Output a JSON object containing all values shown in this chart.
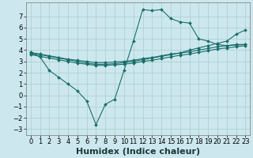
{
  "xlabel": "Humidex (Indice chaleur)",
  "background_color": "#cce8ee",
  "grid_color": "#aacccc",
  "line_color": "#1a6e6a",
  "xlim": [
    -0.5,
    23.5
  ],
  "ylim": [
    -3.5,
    8.2
  ],
  "xticks": [
    0,
    1,
    2,
    3,
    4,
    5,
    6,
    7,
    8,
    9,
    10,
    11,
    12,
    13,
    14,
    15,
    16,
    17,
    18,
    19,
    20,
    21,
    22,
    23
  ],
  "yticks": [
    -3,
    -2,
    -1,
    0,
    1,
    2,
    3,
    4,
    5,
    6,
    7
  ],
  "line1_x": [
    0,
    1,
    2,
    3,
    4,
    5,
    6,
    7,
    8,
    9,
    10,
    11,
    12,
    13,
    14,
    15,
    16,
    17,
    18,
    19,
    20,
    21,
    22,
    23
  ],
  "line1_y": [
    3.8,
    3.4,
    2.2,
    1.6,
    1.0,
    0.4,
    -0.5,
    -2.6,
    -0.8,
    -0.35,
    2.2,
    4.8,
    7.6,
    7.5,
    7.6,
    6.8,
    6.5,
    6.4,
    5.0,
    4.8,
    4.5,
    4.4,
    4.5,
    4.5
  ],
  "line2_x": [
    0,
    1,
    2,
    3,
    4,
    5,
    6,
    7,
    8,
    9,
    10,
    11,
    12,
    13,
    14,
    15,
    16,
    17,
    18,
    19,
    20,
    21,
    22,
    23
  ],
  "line2_y": [
    3.8,
    3.65,
    3.5,
    3.35,
    3.2,
    3.1,
    3.0,
    2.9,
    2.9,
    2.95,
    3.0,
    3.1,
    3.25,
    3.35,
    3.5,
    3.65,
    3.75,
    3.85,
    4.0,
    4.15,
    4.3,
    4.4,
    4.45,
    4.5
  ],
  "line3_x": [
    0,
    1,
    2,
    3,
    4,
    5,
    6,
    7,
    8,
    9,
    10,
    11,
    12,
    13,
    14,
    15,
    16,
    17,
    18,
    19,
    20,
    21,
    22,
    23
  ],
  "line3_y": [
    3.6,
    3.45,
    3.3,
    3.15,
    3.0,
    2.85,
    2.75,
    2.65,
    2.65,
    2.7,
    2.75,
    2.85,
    3.0,
    3.1,
    3.25,
    3.4,
    3.55,
    3.65,
    3.8,
    3.95,
    4.1,
    4.2,
    4.3,
    4.4
  ],
  "line4_x": [
    0,
    1,
    2,
    3,
    4,
    5,
    6,
    7,
    8,
    9,
    10,
    11,
    12,
    13,
    14,
    15,
    16,
    17,
    18,
    19,
    20,
    21,
    22,
    23
  ],
  "line4_y": [
    3.7,
    3.6,
    3.45,
    3.3,
    3.15,
    3.0,
    2.85,
    2.75,
    2.75,
    2.8,
    2.9,
    3.0,
    3.15,
    3.3,
    3.45,
    3.6,
    3.75,
    4.0,
    4.2,
    4.4,
    4.6,
    4.8,
    5.4,
    5.8
  ],
  "xlabel_fontsize": 8,
  "tick_fontsize": 6
}
